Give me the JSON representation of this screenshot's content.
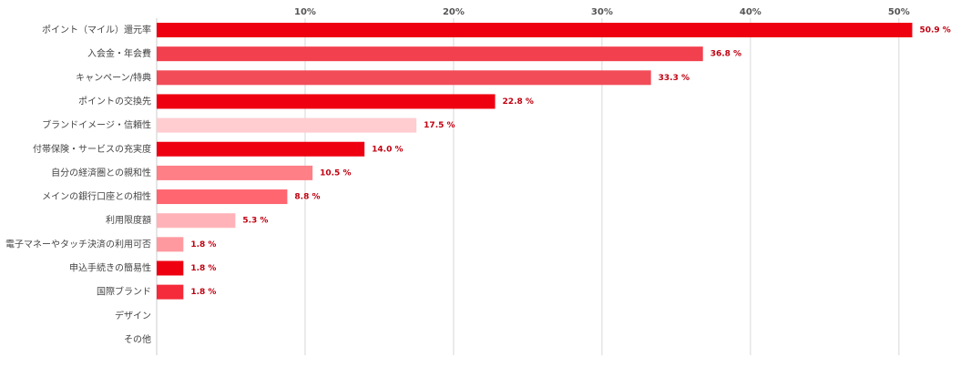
{
  "chart_data": {
    "type": "bar",
    "orientation": "horizontal",
    "categories": [
      "ポイント（マイル）還元率",
      "入会金・年会費",
      "キャンペーン/特典",
      "ポイントの交換先",
      "ブランドイメージ・信頼性",
      "付帯保険・サービスの充実度",
      "自分の経済圏との親和性",
      "メインの銀行口座との相性",
      "利用限度額",
      "電子マネーやタッチ決済の利用可否",
      "申込手続きの簡易性",
      "国際ブランド",
      "デザイン",
      "その他"
    ],
    "values": [
      50.9,
      36.8,
      33.3,
      22.8,
      17.5,
      14.0,
      10.5,
      8.8,
      5.3,
      1.8,
      1.8,
      1.8,
      null,
      null
    ],
    "value_labels": [
      "50.9 %",
      "36.8 %",
      "33.3 %",
      "22.8 %",
      "17.5 %",
      "14.0 %",
      "10.5 %",
      "8.8 %",
      "5.3 %",
      "1.8 %",
      "1.8 %",
      "1.8 %",
      null,
      null
    ],
    "colors": [
      "#ee0011",
      "#f2404e",
      "#f24c58",
      "#ee0011",
      "#ffcdd0",
      "#ee0011",
      "#ff7f87",
      "#ff6670",
      "#ffb3b8",
      "#ff99a0",
      "#ee0011",
      "#f52a3a",
      null,
      null
    ],
    "xlim": [
      0,
      54
    ],
    "xticks": [
      {
        "value": 10,
        "label": "10%"
      },
      {
        "value": 20,
        "label": "20%"
      },
      {
        "value": 30,
        "label": "30%"
      },
      {
        "value": 40,
        "label": "40%"
      },
      {
        "value": 50,
        "label": "50%"
      }
    ],
    "grid": true
  }
}
